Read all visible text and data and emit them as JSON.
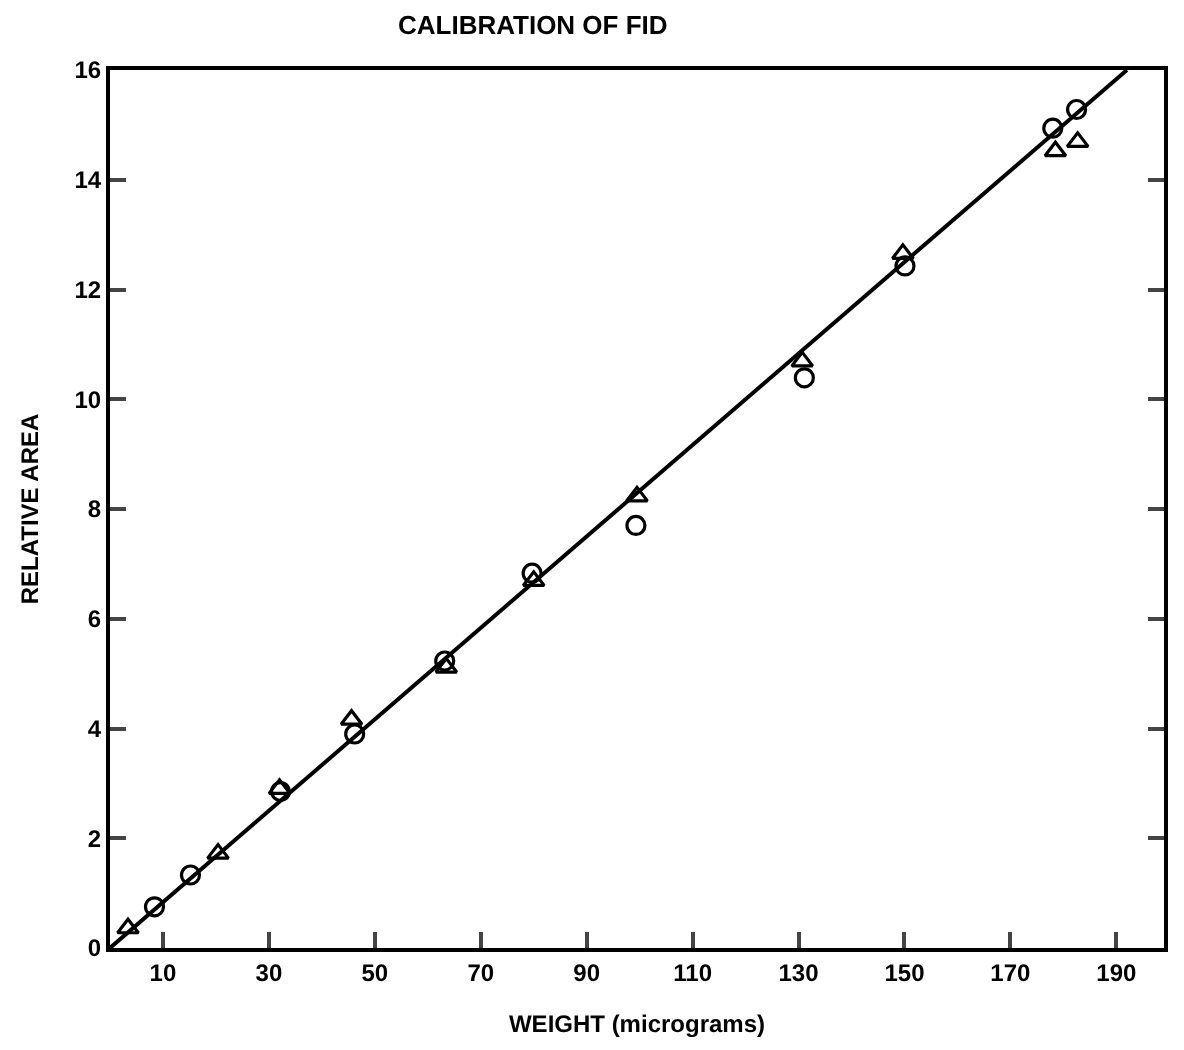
{
  "chart_data": {
    "type": "scatter",
    "title": "CALIBRATION OF FID",
    "xlabel": "WEIGHT (micrograms)",
    "ylabel": "RELATIVE AREA",
    "xlim": [
      0,
      199
    ],
    "xticks": [
      10,
      30,
      50,
      70,
      90,
      110,
      130,
      150,
      170,
      190
    ],
    "ylim": [
      0,
      16
    ],
    "yticks": [
      0,
      2,
      4,
      6,
      8,
      10,
      12,
      14,
      16
    ],
    "series": [
      {
        "marker": "circle",
        "color": "#000000",
        "x": [
          8.4,
          15.2,
          32.2,
          46.2,
          63.2,
          79.7,
          99.3,
          131.1,
          150.1,
          178.0,
          182.5
        ],
        "values": [
          0.75,
          1.33,
          2.85,
          3.9,
          5.23,
          6.83,
          7.7,
          10.39,
          12.43,
          14.94,
          15.28
        ]
      },
      {
        "marker": "triangle",
        "color": "#000000",
        "x": [
          3.4,
          20.4,
          32.0,
          45.6,
          63.5,
          80.0,
          99.5,
          130.7,
          149.7,
          178.5,
          182.7
        ],
        "values": [
          0.36,
          1.72,
          2.9,
          4.16,
          5.11,
          6.69,
          8.23,
          10.69,
          12.65,
          14.52,
          14.69
        ]
      },
      {
        "type": "line",
        "marker": "none",
        "line_style": "solid",
        "color": "#000000",
        "x": [
          0,
          192
        ],
        "values": [
          0,
          16
        ]
      }
    ]
  }
}
